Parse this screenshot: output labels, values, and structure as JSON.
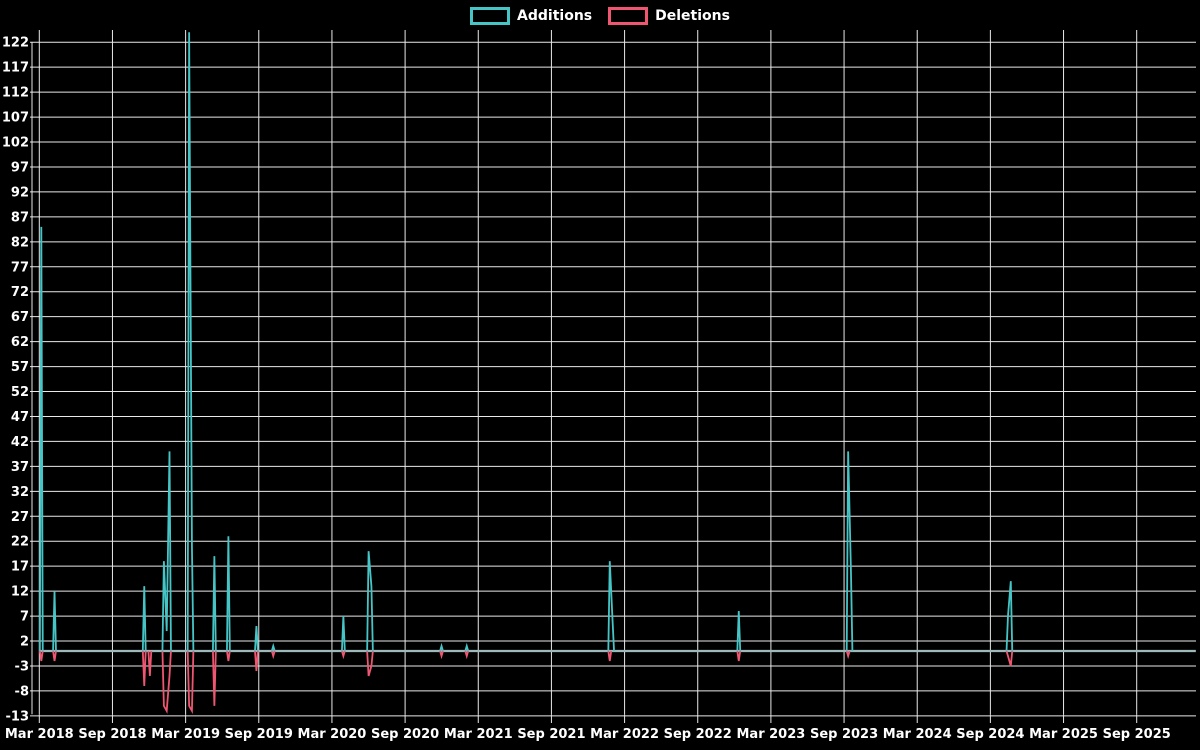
{
  "legend": {
    "items": [
      {
        "label": "Additions",
        "color": "#46c5c7"
      },
      {
        "label": "Deletions",
        "color": "#ef5671"
      }
    ]
  },
  "colors": {
    "background": "#000000",
    "grid": "#e9e9e9",
    "axis_text": "#ffffff",
    "zero_baseline": "#9db9b9",
    "additions": "#46c5c7",
    "deletions": "#ef5671"
  },
  "chart_data": {
    "type": "line",
    "title": "",
    "xlabel": "",
    "ylabel": "",
    "grid": true,
    "legend_position": "top-center",
    "x_axis": {
      "tick_labels": [
        "Mar 2018",
        "Sep 2018",
        "Mar 2019",
        "Sep 2019",
        "Mar 2020",
        "Sep 2020",
        "Mar 2021",
        "Sep 2021",
        "Mar 2022",
        "Sep 2022",
        "Mar 2023",
        "Sep 2023",
        "Mar 2024",
        "Sep 2024",
        "Mar 2025",
        "Sep 2025"
      ],
      "tick_interval_months": 6
    },
    "y_axis": {
      "tick_min": -13,
      "tick_max": 122,
      "tick_step": 5,
      "plot_min": -14,
      "plot_max": 124.5
    },
    "baseline_value": 0,
    "data_start": "2018-03-01",
    "data_end": "2026-01-25",
    "series": [
      {
        "name": "Additions",
        "color": "#46c5c7",
        "events": [
          [
            "2018-03-06",
            85
          ],
          [
            "2018-04-08",
            12
          ],
          [
            "2018-11-18",
            13
          ],
          [
            "2019-01-06",
            18
          ],
          [
            "2019-01-13",
            4
          ],
          [
            "2019-01-20",
            40
          ],
          [
            "2019-03-10",
            124
          ],
          [
            "2019-03-17",
            21
          ],
          [
            "2019-05-12",
            19
          ],
          [
            "2019-06-16",
            23
          ],
          [
            "2019-08-25",
            5
          ],
          [
            "2019-10-06",
            1
          ],
          [
            "2020-03-29",
            7
          ],
          [
            "2020-05-31",
            20
          ],
          [
            "2020-06-07",
            13
          ],
          [
            "2020-11-29",
            1
          ],
          [
            "2021-01-31",
            1
          ],
          [
            "2022-01-23",
            18
          ],
          [
            "2022-01-30",
            6
          ],
          [
            "2022-12-11",
            8
          ],
          [
            "2023-09-10",
            40
          ],
          [
            "2023-09-17",
            16
          ],
          [
            "2024-10-13",
            7
          ],
          [
            "2024-10-20",
            14
          ]
        ]
      },
      {
        "name": "Deletions",
        "color": "#ef5671",
        "events": [
          [
            "2018-03-06",
            -2
          ],
          [
            "2018-04-08",
            -2
          ],
          [
            "2018-11-18",
            -7
          ],
          [
            "2018-12-02",
            -5
          ],
          [
            "2019-01-06",
            -11
          ],
          [
            "2019-01-13",
            -12
          ],
          [
            "2019-01-20",
            -5
          ],
          [
            "2019-03-10",
            -11
          ],
          [
            "2019-03-17",
            -12
          ],
          [
            "2019-05-12",
            -11
          ],
          [
            "2019-06-16",
            -2
          ],
          [
            "2019-08-25",
            -4
          ],
          [
            "2019-10-06",
            -1
          ],
          [
            "2020-03-29",
            -1
          ],
          [
            "2020-05-31",
            -5
          ],
          [
            "2020-06-07",
            -3
          ],
          [
            "2020-11-29",
            -1
          ],
          [
            "2021-01-31",
            -1
          ],
          [
            "2022-01-23",
            -2
          ],
          [
            "2022-12-11",
            -2
          ],
          [
            "2023-09-10",
            -1
          ],
          [
            "2024-10-13",
            -1
          ],
          [
            "2024-10-20",
            -3
          ]
        ]
      }
    ]
  }
}
